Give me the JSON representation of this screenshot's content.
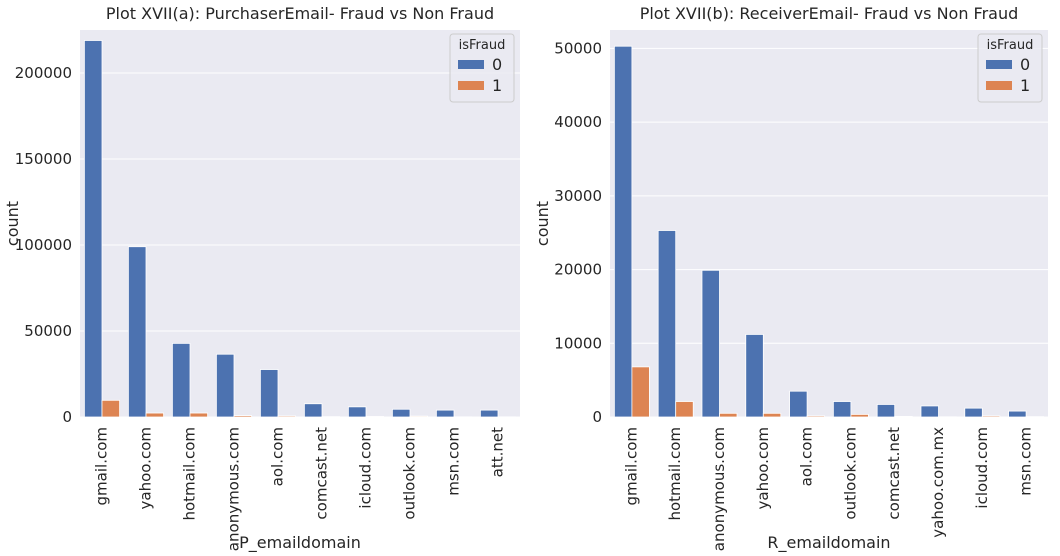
{
  "chart_data": [
    {
      "type": "bar",
      "title": "Plot XVII(a): PurchaserEmail- Fraud vs Non Fraud",
      "xlabel": "P_emaildomain",
      "ylabel": "count",
      "ylim": [
        0,
        225000
      ],
      "yticks": [
        0,
        50000,
        100000,
        150000,
        200000
      ],
      "grid": "horizontal",
      "categories": [
        "gmail.com",
        "yahoo.com",
        "hotmail.com",
        "anonymous.com",
        "aol.com",
        "comcast.net",
        "icloud.com",
        "outlook.com",
        "msn.com",
        "att.net"
      ],
      "legend": {
        "title": "isFraud",
        "position": "top-right"
      },
      "series": [
        {
          "name": "0",
          "color": "#4c72b0",
          "values": [
            218900,
            99000,
            42800,
            36500,
            27600,
            7700,
            5900,
            4500,
            4000,
            4000
          ]
        },
        {
          "name": "1",
          "color": "#dd8452",
          "values": [
            9700,
            2300,
            2300,
            800,
            600,
            200,
            300,
            500,
            100,
            100
          ]
        }
      ]
    },
    {
      "type": "bar",
      "title": "Plot XVII(b): ReceiverEmail- Fraud vs Non Fraud",
      "xlabel": "R_emaildomain",
      "ylabel": "count",
      "ylim": [
        0,
        52500
      ],
      "yticks": [
        0,
        10000,
        20000,
        30000,
        40000,
        50000
      ],
      "grid": "horizontal",
      "categories": [
        "gmail.com",
        "hotmail.com",
        "anonymous.com",
        "yahoo.com",
        "aol.com",
        "outlook.com",
        "comcast.net",
        "yahoo.com.mx",
        "icloud.com",
        "msn.com"
      ],
      "legend": {
        "title": "isFraud",
        "position": "top-right"
      },
      "series": [
        {
          "name": "0",
          "color": "#4c72b0",
          "values": [
            50300,
            25300,
            19900,
            11200,
            3500,
            2100,
            1700,
            1500,
            1200,
            800
          ]
        },
        {
          "name": "1",
          "color": "#dd8452",
          "values": [
            6800,
            2100,
            500,
            500,
            150,
            350,
            80,
            30,
            150,
            50
          ]
        }
      ]
    }
  ]
}
